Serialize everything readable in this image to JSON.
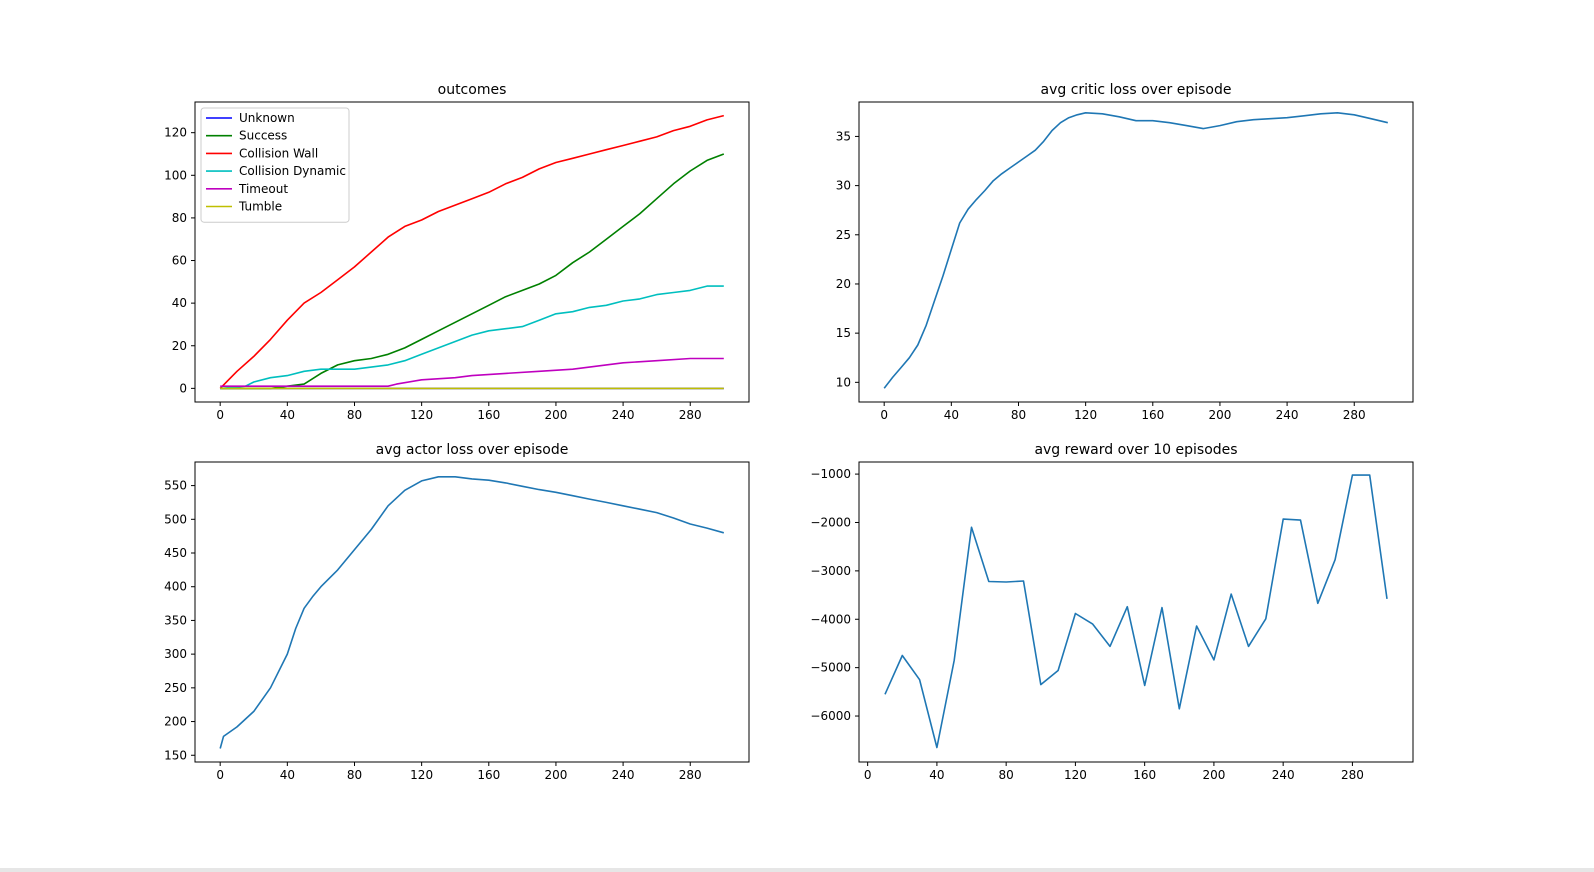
{
  "colors": {
    "default_line": "#1f77b4",
    "unknown": "#0000ff",
    "success": "#008000",
    "collision_wall": "#ff0000",
    "collision_dynamic": "#00bfbf",
    "timeout": "#bf00bf",
    "tumble": "#bfbf00"
  },
  "chart_data": [
    {
      "type": "line",
      "title": "outcomes",
      "xlabel": "",
      "ylabel": "",
      "xlim": [
        -15,
        315
      ],
      "ylim": [
        -6.4,
        134.4
      ],
      "xticks": [
        0,
        40,
        80,
        120,
        160,
        200,
        240,
        280
      ],
      "yticks": [
        0,
        20,
        40,
        60,
        80,
        100,
        120
      ],
      "legend": "top-left",
      "series": [
        {
          "name": "Unknown",
          "color": "#0000ff",
          "points": [
            [
              0,
              0
            ],
            [
              300,
              0
            ]
          ]
        },
        {
          "name": "Success",
          "color": "#008000",
          "points": [
            [
              0,
              0
            ],
            [
              30,
              0
            ],
            [
              40,
              1
            ],
            [
              50,
              2
            ],
            [
              60,
              7
            ],
            [
              70,
              11
            ],
            [
              80,
              13
            ],
            [
              90,
              14
            ],
            [
              100,
              16
            ],
            [
              110,
              19
            ],
            [
              120,
              23
            ],
            [
              130,
              27
            ],
            [
              140,
              31
            ],
            [
              150,
              35
            ],
            [
              160,
              39
            ],
            [
              170,
              43
            ],
            [
              180,
              46
            ],
            [
              190,
              49
            ],
            [
              200,
              53
            ],
            [
              210,
              59
            ],
            [
              220,
              64
            ],
            [
              230,
              70
            ],
            [
              240,
              76
            ],
            [
              250,
              82
            ],
            [
              260,
              89
            ],
            [
              270,
              96
            ],
            [
              280,
              102
            ],
            [
              290,
              107
            ],
            [
              300,
              110
            ]
          ]
        },
        {
          "name": "Collision Wall",
          "color": "#ff0000",
          "points": [
            [
              0,
              0
            ],
            [
              5,
              4
            ],
            [
              10,
              8
            ],
            [
              20,
              15
            ],
            [
              30,
              23
            ],
            [
              40,
              32
            ],
            [
              50,
              40
            ],
            [
              60,
              45
            ],
            [
              70,
              51
            ],
            [
              80,
              57
            ],
            [
              90,
              64
            ],
            [
              100,
              71
            ],
            [
              110,
              76
            ],
            [
              120,
              79
            ],
            [
              130,
              83
            ],
            [
              140,
              86
            ],
            [
              150,
              89
            ],
            [
              160,
              92
            ],
            [
              170,
              96
            ],
            [
              180,
              99
            ],
            [
              190,
              103
            ],
            [
              200,
              106
            ],
            [
              210,
              108
            ],
            [
              220,
              110
            ],
            [
              230,
              112
            ],
            [
              240,
              114
            ],
            [
              250,
              116
            ],
            [
              260,
              118
            ],
            [
              270,
              121
            ],
            [
              280,
              123
            ],
            [
              290,
              126
            ],
            [
              300,
              128
            ]
          ]
        },
        {
          "name": "Collision Dynamic",
          "color": "#00bfbf",
          "points": [
            [
              0,
              0
            ],
            [
              15,
              1
            ],
            [
              20,
              3
            ],
            [
              30,
              5
            ],
            [
              40,
              6
            ],
            [
              50,
              8
            ],
            [
              60,
              9
            ],
            [
              70,
              9
            ],
            [
              80,
              9
            ],
            [
              90,
              10
            ],
            [
              100,
              11
            ],
            [
              110,
              13
            ],
            [
              120,
              16
            ],
            [
              130,
              19
            ],
            [
              140,
              22
            ],
            [
              150,
              25
            ],
            [
              160,
              27
            ],
            [
              170,
              28
            ],
            [
              180,
              29
            ],
            [
              190,
              32
            ],
            [
              200,
              35
            ],
            [
              210,
              36
            ],
            [
              220,
              38
            ],
            [
              230,
              39
            ],
            [
              240,
              41
            ],
            [
              250,
              42
            ],
            [
              260,
              44
            ],
            [
              270,
              45
            ],
            [
              280,
              46
            ],
            [
              290,
              48
            ],
            [
              300,
              48
            ]
          ]
        },
        {
          "name": "Timeout",
          "color": "#bf00bf",
          "points": [
            [
              0,
              1
            ],
            [
              100,
              1
            ],
            [
              105,
              2
            ],
            [
              120,
              4
            ],
            [
              140,
              5
            ],
            [
              150,
              6
            ],
            [
              170,
              7
            ],
            [
              190,
              8
            ],
            [
              210,
              9
            ],
            [
              220,
              10
            ],
            [
              230,
              11
            ],
            [
              240,
              12
            ],
            [
              260,
              13
            ],
            [
              280,
              14
            ],
            [
              300,
              14
            ]
          ]
        },
        {
          "name": "Tumble",
          "color": "#bfbf00",
          "points": [
            [
              0,
              0
            ],
            [
              300,
              0
            ]
          ]
        }
      ]
    },
    {
      "type": "line",
      "title": "avg critic loss over episode",
      "xlabel": "",
      "ylabel": "",
      "xlim": [
        -15,
        315
      ],
      "ylim": [
        8,
        38.5
      ],
      "xticks": [
        0,
        40,
        80,
        120,
        160,
        200,
        240,
        280
      ],
      "yticks": [
        10,
        15,
        20,
        25,
        30,
        35
      ],
      "series": [
        {
          "name": "critic_loss",
          "color": "#1f77b4",
          "points": [
            [
              0,
              9.4
            ],
            [
              5,
              10.5
            ],
            [
              10,
              11.5
            ],
            [
              15,
              12.5
            ],
            [
              20,
              13.8
            ],
            [
              25,
              15.8
            ],
            [
              30,
              18.3
            ],
            [
              35,
              20.8
            ],
            [
              40,
              23.5
            ],
            [
              45,
              26.2
            ],
            [
              50,
              27.6
            ],
            [
              55,
              28.6
            ],
            [
              60,
              29.5
            ],
            [
              65,
              30.5
            ],
            [
              70,
              31.2
            ],
            [
              75,
              31.8
            ],
            [
              80,
              32.4
            ],
            [
              85,
              33.0
            ],
            [
              90,
              33.6
            ],
            [
              95,
              34.5
            ],
            [
              100,
              35.6
            ],
            [
              105,
              36.4
            ],
            [
              110,
              36.9
            ],
            [
              115,
              37.2
            ],
            [
              120,
              37.4
            ],
            [
              130,
              37.3
            ],
            [
              140,
              37.0
            ],
            [
              150,
              36.6
            ],
            [
              160,
              36.6
            ],
            [
              170,
              36.4
            ],
            [
              180,
              36.1
            ],
            [
              190,
              35.8
            ],
            [
              200,
              36.1
            ],
            [
              210,
              36.5
            ],
            [
              220,
              36.7
            ],
            [
              230,
              36.8
            ],
            [
              240,
              36.9
            ],
            [
              250,
              37.1
            ],
            [
              260,
              37.3
            ],
            [
              270,
              37.4
            ],
            [
              280,
              37.2
            ],
            [
              290,
              36.8
            ],
            [
              300,
              36.4
            ]
          ]
        }
      ]
    },
    {
      "type": "line",
      "title": "avg actor loss over episode",
      "xlabel": "",
      "ylabel": "",
      "xlim": [
        -15,
        315
      ],
      "ylim": [
        140,
        585
      ],
      "xticks": [
        0,
        40,
        80,
        120,
        160,
        200,
        240,
        280
      ],
      "yticks": [
        150,
        200,
        250,
        300,
        350,
        400,
        450,
        500,
        550
      ],
      "series": [
        {
          "name": "actor_loss",
          "color": "#1f77b4",
          "points": [
            [
              0,
              160
            ],
            [
              2,
              178
            ],
            [
              10,
              192
            ],
            [
              20,
              215
            ],
            [
              30,
              250
            ],
            [
              40,
              300
            ],
            [
              45,
              338
            ],
            [
              50,
              368
            ],
            [
              55,
              385
            ],
            [
              60,
              400
            ],
            [
              70,
              425
            ],
            [
              80,
              455
            ],
            [
              90,
              485
            ],
            [
              100,
              520
            ],
            [
              110,
              543
            ],
            [
              120,
              557
            ],
            [
              130,
              563
            ],
            [
              140,
              563
            ],
            [
              150,
              560
            ],
            [
              160,
              558
            ],
            [
              170,
              554
            ],
            [
              180,
              549
            ],
            [
              190,
              544
            ],
            [
              200,
              540
            ],
            [
              210,
              535
            ],
            [
              220,
              530
            ],
            [
              230,
              525
            ],
            [
              240,
              520
            ],
            [
              250,
              515
            ],
            [
              260,
              510
            ],
            [
              270,
              502
            ],
            [
              280,
              493
            ],
            [
              290,
              487
            ],
            [
              300,
              480
            ]
          ]
        }
      ]
    },
    {
      "type": "line",
      "title": "avg reward over 10 episodes",
      "xlabel": "",
      "ylabel": "",
      "xlim": [
        -5,
        315
      ],
      "ylim": [
        -6950,
        -750
      ],
      "xticks": [
        0,
        40,
        80,
        120,
        160,
        200,
        240,
        280
      ],
      "yticks": [
        -6000,
        -5000,
        -4000,
        -3000,
        -2000,
        -1000
      ],
      "series": [
        {
          "name": "avg_reward",
          "color": "#1f77b4",
          "points": [
            [
              10,
              -5550
            ],
            [
              20,
              -4750
            ],
            [
              30,
              -5250
            ],
            [
              40,
              -6650
            ],
            [
              50,
              -4850
            ],
            [
              60,
              -2100
            ],
            [
              70,
              -3220
            ],
            [
              80,
              -3230
            ],
            [
              90,
              -3210
            ],
            [
              100,
              -5350
            ],
            [
              110,
              -5060
            ],
            [
              120,
              -3880
            ],
            [
              130,
              -4100
            ],
            [
              140,
              -4560
            ],
            [
              150,
              -3740
            ],
            [
              160,
              -5370
            ],
            [
              170,
              -3760
            ],
            [
              180,
              -5850
            ],
            [
              190,
              -4140
            ],
            [
              200,
              -4840
            ],
            [
              210,
              -3480
            ],
            [
              220,
              -4560
            ],
            [
              230,
              -3990
            ],
            [
              240,
              -1930
            ],
            [
              250,
              -1950
            ],
            [
              260,
              -3670
            ],
            [
              270,
              -2770
            ],
            [
              280,
              -1020
            ],
            [
              290,
              -1020
            ],
            [
              300,
              -3580
            ]
          ]
        }
      ]
    }
  ]
}
